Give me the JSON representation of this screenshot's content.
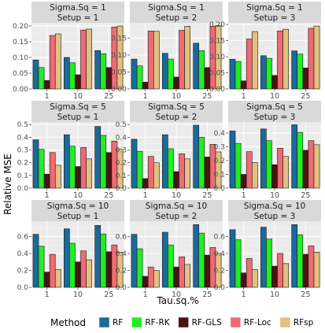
{
  "chart_data": {
    "type": "bar",
    "categories": [
      "1",
      "10",
      "25"
    ],
    "xlabel": "Tau.sq.%",
    "ylabel": "Relative MSE",
    "legend": {
      "title": "Method",
      "position": "bottom",
      "entries": [
        {
          "name": "RF",
          "color": "#1b6a9a"
        },
        {
          "name": "RF-RK",
          "color": "#22ee22"
        },
        {
          "name": "RF-GLS",
          "color": "#4a1414"
        },
        {
          "name": "RF-Loc",
          "color": "#ef6a73"
        },
        {
          "name": "RFsp",
          "color": "#e3c081"
        }
      ]
    },
    "grid": true,
    "facet_rows": 3,
    "facet_cols": 3,
    "panels": [
      {
        "strip": [
          "Sigma.Sq = 1",
          "Setup = 1"
        ],
        "ylim": [
          0,
          0.21
        ],
        "yticks": [
          0.0,
          0.05,
          0.1,
          0.15,
          0.2
        ],
        "ytick_labels": [
          "0.00",
          "0.05",
          "0.10",
          "0.15",
          "0.20"
        ],
        "series": [
          {
            "name": "RF",
            "values": [
              0.092,
              0.1,
              0.122
            ]
          },
          {
            "name": "RF-RK",
            "values": [
              0.068,
              0.083,
              0.112
            ]
          },
          {
            "name": "RF-GLS",
            "values": [
              0.027,
              0.045,
              0.068
            ]
          },
          {
            "name": "RF-Loc",
            "values": [
              0.17,
              0.187,
              0.197
            ]
          },
          {
            "name": "RFsp",
            "values": [
              0.175,
              0.19,
              0.2
            ]
          }
        ]
      },
      {
        "strip": [
          "Sigma.Sq = 1",
          "Setup = 2"
        ],
        "ylim": [
          0,
          0.195
        ],
        "yticks": [
          0.0,
          0.05,
          0.1,
          0.15
        ],
        "ytick_labels": [
          "0.00",
          "0.05",
          "0.10",
          "0.15"
        ],
        "series": [
          {
            "name": "RF",
            "values": [
              0.088,
              0.105,
              0.135
            ]
          },
          {
            "name": "RF-RK",
            "values": [
              0.068,
              0.088,
              0.113
            ]
          },
          {
            "name": "RF-GLS",
            "values": [
              0.02,
              0.035,
              0.063
            ]
          },
          {
            "name": "RF-Loc",
            "values": [
              0.171,
              0.173,
              0.185
            ]
          },
          {
            "name": "RFsp",
            "values": [
              0.17,
              0.185,
              0.187
            ]
          }
        ]
      },
      {
        "strip": [
          "Sigma.Sq = 1",
          "Setup = 3"
        ],
        "ylim": [
          0,
          0.205
        ],
        "yticks": [
          0.0,
          0.05,
          0.1,
          0.15,
          0.2
        ],
        "ytick_labels": [
          "0.00",
          "0.05",
          "0.10",
          "0.15",
          "0.20"
        ],
        "series": [
          {
            "name": "RF",
            "values": [
              0.092,
              0.103,
              0.118
            ]
          },
          {
            "name": "RF-RK",
            "values": [
              0.085,
              0.095,
              0.108
            ]
          },
          {
            "name": "RF-GLS",
            "values": [
              0.025,
              0.042,
              0.065
            ]
          },
          {
            "name": "RF-Loc",
            "values": [
              0.155,
              0.18,
              0.188
            ]
          },
          {
            "name": "RFsp",
            "values": [
              0.178,
              0.185,
              0.195
            ]
          }
        ]
      },
      {
        "strip": [
          "Sigma.Sq = 5",
          "Setup = 1"
        ],
        "ylim": [
          0,
          0.52
        ],
        "yticks": [
          0.0,
          0.1,
          0.2,
          0.3,
          0.4,
          0.5
        ],
        "ytick_labels": [
          "0.0",
          "0.1",
          "0.2",
          "0.3",
          "0.4",
          "0.5"
        ],
        "series": [
          {
            "name": "RF",
            "values": [
              0.38,
              0.42,
              0.485
            ]
          },
          {
            "name": "RF-RK",
            "values": [
              0.305,
              0.33,
              0.415
            ]
          },
          {
            "name": "RF-GLS",
            "values": [
              0.11,
              0.17,
              0.28
            ]
          },
          {
            "name": "RF-Loc",
            "values": [
              0.28,
              0.32,
              0.37
            ]
          },
          {
            "name": "RFsp",
            "values": [
              0.18,
              0.23,
              0.305
            ]
          }
        ]
      },
      {
        "strip": [
          "Sigma.Sq = 5",
          "Setup = 2"
        ],
        "ylim": [
          0,
          0.52
        ],
        "yticks": [
          0.0,
          0.1,
          0.2,
          0.3,
          0.4,
          0.5
        ],
        "ytick_labels": [
          "0.0",
          "0.1",
          "0.2",
          "0.3",
          "0.4",
          "0.5"
        ],
        "series": [
          {
            "name": "RF",
            "values": [
              0.385,
              0.42,
              0.495
            ]
          },
          {
            "name": "RF-RK",
            "values": [
              0.29,
              0.31,
              0.4
            ]
          },
          {
            "name": "RF-GLS",
            "values": [
              0.075,
              0.13,
              0.245
            ]
          },
          {
            "name": "RF-Loc",
            "values": [
              0.25,
              0.27,
              0.345
            ]
          },
          {
            "name": "RFsp",
            "values": [
              0.2,
              0.23,
              0.285
            ]
          }
        ]
      },
      {
        "strip": [
          "Sigma.Sq = 5",
          "Setup = 3"
        ],
        "ylim": [
          0,
          0.48
        ],
        "yticks": [
          0.0,
          0.1,
          0.2,
          0.3,
          0.4
        ],
        "ytick_labels": [
          "0.0",
          "0.1",
          "0.2",
          "0.3",
          "0.4"
        ],
        "series": [
          {
            "name": "RF",
            "values": [
              0.415,
              0.43,
              0.46
            ]
          },
          {
            "name": "RF-RK",
            "values": [
              0.325,
              0.345,
              0.405
            ]
          },
          {
            "name": "RF-GLS",
            "values": [
              0.1,
              0.17,
              0.275
            ]
          },
          {
            "name": "RF-Loc",
            "values": [
              0.265,
              0.29,
              0.345
            ]
          },
          {
            "name": "RFsp",
            "values": [
              0.185,
              0.23,
              0.315
            ]
          }
        ]
      },
      {
        "strip": [
          "Sigma.Sq = 10",
          "Setup = 1"
        ],
        "ylim": [
          0,
          0.78
        ],
        "yticks": [
          0.0,
          0.2,
          0.4,
          0.6
        ],
        "ytick_labels": [
          "0.0",
          "0.2",
          "0.4",
          "0.6"
        ],
        "series": [
          {
            "name": "RF",
            "values": [
              0.625,
              0.69,
              0.73
            ]
          },
          {
            "name": "RF-RK",
            "values": [
              0.485,
              0.52,
              0.63
            ]
          },
          {
            "name": "RF-GLS",
            "values": [
              0.18,
              0.3,
              0.42
            ]
          },
          {
            "name": "RF-Loc",
            "values": [
              0.39,
              0.43,
              0.5
            ]
          },
          {
            "name": "RFsp",
            "values": [
              0.21,
              0.325,
              0.415
            ]
          }
        ]
      },
      {
        "strip": [
          "Sigma.Sq = 10",
          "Setup = 2"
        ],
        "ylim": [
          0,
          0.78
        ],
        "yticks": [
          0.0,
          0.2,
          0.4,
          0.6
        ],
        "ytick_labels": [
          "0.0",
          "0.2",
          "0.4",
          "0.6"
        ],
        "series": [
          {
            "name": "RF",
            "values": [
              0.625,
              0.65,
              0.74
            ]
          },
          {
            "name": "RF-RK",
            "values": [
              0.455,
              0.5,
              0.64
            ]
          },
          {
            "name": "RF-GLS",
            "values": [
              0.13,
              0.24,
              0.38
            ]
          },
          {
            "name": "RF-Loc",
            "values": [
              0.24,
              0.36,
              0.47
            ]
          },
          {
            "name": "RFsp",
            "values": [
              0.2,
              0.27,
              0.4
            ]
          }
        ]
      },
      {
        "strip": [
          "Sigma.Sq = 10",
          "Setup = 3"
        ],
        "ylim": [
          0,
          0.78
        ],
        "yticks": [
          0.0,
          0.2,
          0.4,
          0.6
        ],
        "ytick_labels": [
          "0.0",
          "0.2",
          "0.4",
          "0.6"
        ],
        "series": [
          {
            "name": "RF",
            "values": [
              0.68,
              0.71,
              0.74
            ]
          },
          {
            "name": "RF-RK",
            "values": [
              0.56,
              0.57,
              0.62
            ]
          },
          {
            "name": "RF-GLS",
            "values": [
              0.17,
              0.25,
              0.39
            ]
          },
          {
            "name": "RF-Loc",
            "values": [
              0.34,
              0.4,
              0.49
            ]
          },
          {
            "name": "RFsp",
            "values": [
              0.21,
              0.28,
              0.415
            ]
          }
        ]
      }
    ]
  }
}
